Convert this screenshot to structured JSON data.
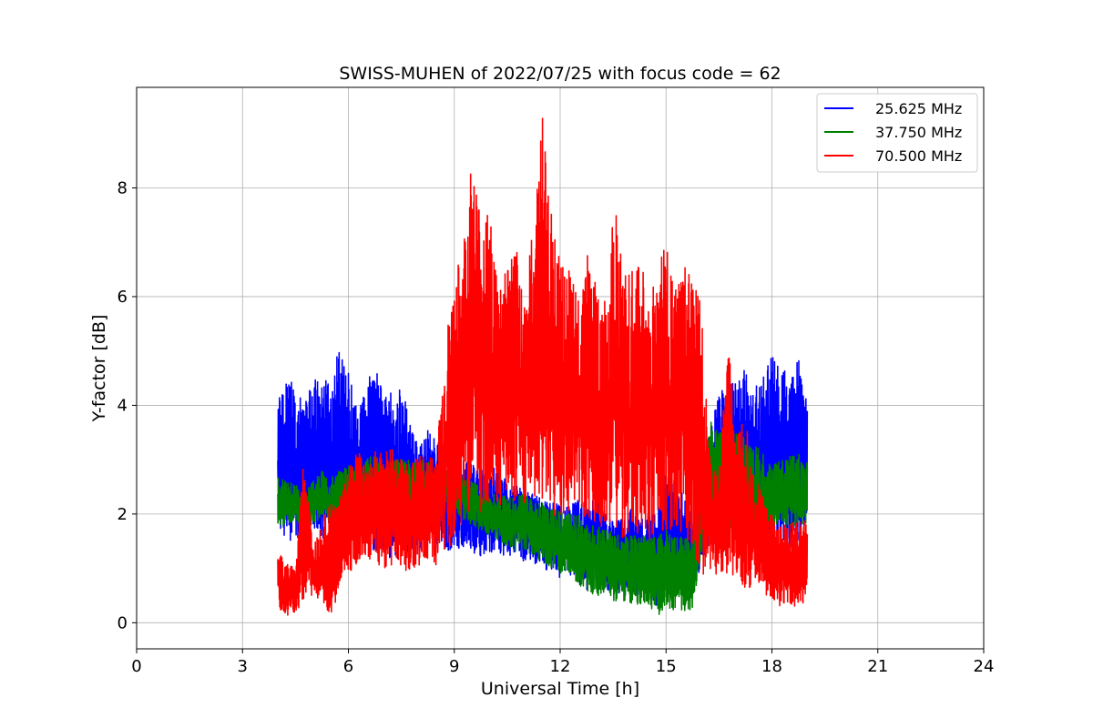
{
  "chart_data": {
    "type": "line",
    "title": "SWISS-MUHEN of 2022/07/25 with focus code = 62",
    "xlabel": "Universal Time [h]",
    "ylabel": "Y-factor [dB]",
    "xlim": [
      0,
      24
    ],
    "ylim": [
      -0.48,
      9.85
    ],
    "xticks": [
      0,
      3,
      6,
      9,
      12,
      15,
      18,
      21,
      24
    ],
    "yticks": [
      0,
      2,
      4,
      6,
      8
    ],
    "grid": true,
    "legend_position": "top-right",
    "series": [
      {
        "name": "25.625 MHz",
        "color": "#0000ff",
        "x": [
          4.0,
          4.25,
          4.5,
          4.75,
          5.0,
          5.25,
          5.5,
          5.75,
          6.0,
          6.25,
          6.5,
          6.75,
          7.0,
          7.25,
          7.5,
          7.75,
          8.0,
          8.25,
          8.5,
          8.75,
          9.0,
          9.25,
          9.5,
          9.75,
          10.0,
          10.25,
          10.5,
          10.75,
          11.0,
          11.25,
          11.5,
          11.75,
          12.0,
          12.25,
          12.5,
          12.75,
          13.0,
          13.25,
          13.5,
          13.75,
          14.0,
          14.25,
          14.5,
          14.75,
          15.0,
          15.25,
          15.5,
          15.75,
          16.0,
          16.25,
          16.5,
          16.75,
          17.0,
          17.25,
          17.5,
          17.75,
          18.0,
          18.25,
          18.5,
          18.75,
          19.0
        ],
        "low": [
          1.8,
          1.5,
          1.5,
          1.7,
          1.6,
          1.5,
          1.7,
          1.4,
          1.3,
          1.2,
          1.3,
          1.3,
          1.2,
          1.2,
          1.1,
          1.2,
          1.2,
          1.3,
          1.3,
          1.2,
          1.3,
          1.4,
          1.3,
          1.2,
          1.3,
          1.3,
          1.2,
          1.3,
          1.1,
          1.1,
          1.0,
          0.9,
          0.8,
          0.9,
          0.7,
          0.6,
          0.6,
          0.6,
          0.6,
          0.5,
          0.5,
          0.4,
          0.5,
          0.3,
          0.5,
          0.5,
          0.5,
          0.5,
          1.0,
          1.5,
          1.5,
          1.6,
          1.4,
          1.5,
          1.3,
          1.1,
          1.2,
          1.4,
          1.3,
          1.5,
          1.6
        ],
        "high": [
          4.2,
          4.5,
          4.4,
          4.0,
          4.5,
          4.7,
          4.3,
          5.2,
          4.6,
          4.0,
          4.4,
          4.9,
          4.1,
          4.3,
          4.3,
          3.8,
          3.2,
          3.6,
          3.5,
          3.1,
          3.0,
          3.0,
          2.9,
          2.9,
          2.9,
          2.9,
          2.6,
          2.6,
          2.4,
          2.4,
          2.3,
          2.3,
          2.2,
          2.2,
          2.3,
          2.2,
          2.4,
          2.0,
          2.0,
          1.9,
          2.1,
          1.9,
          2.0,
          2.1,
          2.8,
          2.6,
          2.4,
          2.3,
          2.8,
          3.6,
          4.2,
          4.6,
          4.4,
          4.7,
          4.3,
          4.6,
          5.0,
          4.9,
          4.4,
          5.0,
          4.0
        ]
      },
      {
        "name": "37.750 MHz",
        "color": "#008000",
        "x": [
          4.0,
          4.25,
          4.5,
          4.75,
          5.0,
          5.25,
          5.5,
          5.75,
          6.0,
          6.25,
          6.5,
          6.75,
          7.0,
          7.25,
          7.5,
          7.75,
          8.0,
          8.25,
          8.5,
          8.75,
          9.0,
          9.25,
          9.5,
          9.75,
          10.0,
          10.25,
          10.5,
          10.75,
          11.0,
          11.25,
          11.5,
          11.75,
          12.0,
          12.25,
          12.5,
          12.75,
          13.0,
          13.25,
          13.5,
          13.75,
          14.0,
          14.25,
          14.5,
          14.75,
          15.0,
          15.25,
          15.5,
          15.75,
          16.0,
          16.25,
          16.5,
          16.75,
          17.0,
          17.25,
          17.5,
          17.75,
          18.0,
          18.25,
          18.5,
          18.75,
          19.0
        ],
        "low": [
          1.7,
          1.8,
          1.9,
          1.7,
          1.8,
          1.9,
          1.8,
          1.9,
          1.9,
          1.9,
          2.0,
          1.9,
          1.9,
          2.0,
          2.0,
          2.1,
          2.0,
          2.1,
          2.1,
          2.2,
          2.1,
          1.9,
          1.8,
          1.7,
          1.6,
          1.5,
          1.4,
          1.3,
          1.3,
          1.2,
          1.1,
          1.0,
          0.9,
          0.9,
          0.7,
          0.6,
          0.5,
          0.5,
          0.4,
          0.4,
          0.3,
          0.3,
          0.3,
          0.1,
          0.3,
          0.2,
          0.2,
          0.2,
          1.2,
          1.6,
          1.7,
          1.8,
          1.6,
          1.6,
          1.6,
          1.7,
          1.7,
          1.8,
          1.7,
          1.8,
          1.8
        ],
        "high": [
          2.7,
          2.6,
          2.6,
          2.4,
          2.6,
          2.8,
          2.7,
          2.8,
          2.9,
          2.9,
          3.0,
          3.1,
          2.9,
          3.0,
          3.0,
          3.0,
          3.0,
          3.0,
          2.9,
          2.9,
          2.8,
          2.7,
          2.6,
          2.5,
          2.4,
          2.4,
          2.3,
          2.3,
          2.5,
          2.2,
          2.2,
          2.1,
          2.1,
          2.0,
          2.0,
          1.8,
          1.8,
          1.7,
          1.7,
          1.6,
          1.6,
          1.6,
          1.6,
          1.6,
          1.7,
          1.6,
          1.6,
          1.6,
          2.8,
          3.7,
          3.6,
          3.6,
          3.5,
          3.4,
          3.3,
          3.1,
          3.0,
          3.0,
          3.1,
          3.1,
          3.0
        ]
      },
      {
        "name": "70.500 MHz",
        "color": "#ff0000",
        "x": [
          4.0,
          4.25,
          4.5,
          4.75,
          5.0,
          5.25,
          5.5,
          5.75,
          6.0,
          6.25,
          6.5,
          6.75,
          7.0,
          7.25,
          7.5,
          7.75,
          8.0,
          8.25,
          8.5,
          8.75,
          9.0,
          9.25,
          9.5,
          9.75,
          10.0,
          10.25,
          10.5,
          10.75,
          11.0,
          11.25,
          11.5,
          11.75,
          12.0,
          12.25,
          12.5,
          12.75,
          13.0,
          13.25,
          13.5,
          13.75,
          14.0,
          14.25,
          14.5,
          14.75,
          15.0,
          15.25,
          15.5,
          15.75,
          16.0,
          16.25,
          16.5,
          16.75,
          17.0,
          17.25,
          17.5,
          17.75,
          18.0,
          18.25,
          18.5,
          18.75,
          19.0
        ],
        "low": [
          0.3,
          0.1,
          0.2,
          0.4,
          0.5,
          0.4,
          0.1,
          0.6,
          0.9,
          1.1,
          1.2,
          1.1,
          1.0,
          1.0,
          1.0,
          0.9,
          1.0,
          1.1,
          1.0,
          1.2,
          1.6,
          1.8,
          2.0,
          2.0,
          2.1,
          2.0,
          2.0,
          2.1,
          2.1,
          2.0,
          2.3,
          2.0,
          1.9,
          2.0,
          2.1,
          1.8,
          1.6,
          1.5,
          1.7,
          1.5,
          1.7,
          1.6,
          1.5,
          1.7,
          1.6,
          1.6,
          1.6,
          1.3,
          0.9,
          0.8,
          0.9,
          0.9,
          0.8,
          0.6,
          0.7,
          0.5,
          0.4,
          0.3,
          0.3,
          0.3,
          0.4
        ],
        "high": [
          1.4,
          1.1,
          1.0,
          3.3,
          1.4,
          1.8,
          2.3,
          2.3,
          2.8,
          3.2,
          2.9,
          3.3,
          3.1,
          3.3,
          3.0,
          2.9,
          3.1,
          3.0,
          3.2,
          5.2,
          6.3,
          7.0,
          8.6,
          7.6,
          7.5,
          6.3,
          6.7,
          6.9,
          6.0,
          7.4,
          9.4,
          7.6,
          6.6,
          6.5,
          6.0,
          6.9,
          6.3,
          5.9,
          8.0,
          6.6,
          6.5,
          6.8,
          6.0,
          6.5,
          7.3,
          6.1,
          6.6,
          6.3,
          6.0,
          3.0,
          2.8,
          5.3,
          3.5,
          4.0,
          2.7,
          2.4,
          2.0,
          1.8,
          1.8,
          2.0,
          1.9
        ]
      }
    ]
  }
}
